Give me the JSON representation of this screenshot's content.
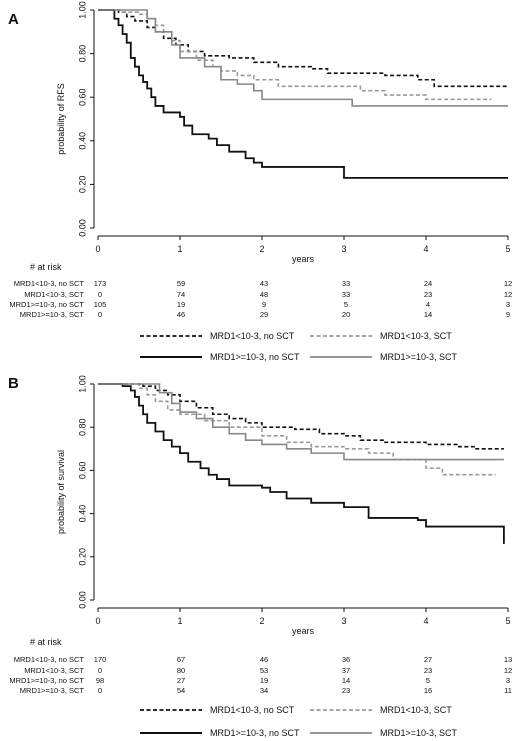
{
  "chart_data": [
    {
      "type": "line",
      "panel": "A",
      "ylabel": "probability of RFS",
      "xlabel": "years",
      "xlim": [
        0,
        5
      ],
      "ylim": [
        0,
        1
      ],
      "x_ticks": [
        "0",
        "1",
        "2",
        "3",
        "4",
        "5"
      ],
      "y_ticks": [
        "0.00",
        "0.20",
        "0.40",
        "0.60",
        "0.80",
        "1.00"
      ],
      "grid": false,
      "series": [
        {
          "name": "MRD1<10-3, no SCT",
          "color": "#111111",
          "dash": "dashed",
          "points": [
            [
              0,
              1
            ],
            [
              0.25,
              0.99
            ],
            [
              0.35,
              0.97
            ],
            [
              0.45,
              0.95
            ],
            [
              0.6,
              0.92
            ],
            [
              0.7,
              0.9
            ],
            [
              0.8,
              0.87
            ],
            [
              0.95,
              0.84
            ],
            [
              1.1,
              0.81
            ],
            [
              1.3,
              0.79
            ],
            [
              1.6,
              0.78
            ],
            [
              1.9,
              0.76
            ],
            [
              2.2,
              0.74
            ],
            [
              2.6,
              0.73
            ],
            [
              2.8,
              0.71
            ],
            [
              3.5,
              0.7
            ],
            [
              3.9,
              0.68
            ],
            [
              4.1,
              0.65
            ],
            [
              5,
              0.65
            ]
          ]
        },
        {
          "name": "MRD1<10-3, SCT",
          "color": "#999999",
          "dash": "dashed",
          "points": [
            [
              0,
              1
            ],
            [
              0.3,
              0.99
            ],
            [
              0.5,
              0.98
            ],
            [
              0.6,
              0.96
            ],
            [
              0.7,
              0.93
            ],
            [
              0.8,
              0.9
            ],
            [
              0.9,
              0.86
            ],
            [
              1,
              0.81
            ],
            [
              1.2,
              0.77
            ],
            [
              1.4,
              0.74
            ],
            [
              1.5,
              0.72
            ],
            [
              1.7,
              0.7
            ],
            [
              1.9,
              0.68
            ],
            [
              2.2,
              0.65
            ],
            [
              2.8,
              0.65
            ],
            [
              3.2,
              0.63
            ],
            [
              3.5,
              0.61
            ],
            [
              4,
              0.59
            ],
            [
              4.8,
              0.59
            ]
          ]
        },
        {
          "name": "MRD1>=10-3, no SCT",
          "color": "#111111",
          "dash": "solid",
          "points": [
            [
              0,
              1
            ],
            [
              0.2,
              0.96
            ],
            [
              0.25,
              0.93
            ],
            [
              0.3,
              0.89
            ],
            [
              0.35,
              0.85
            ],
            [
              0.4,
              0.78
            ],
            [
              0.45,
              0.74
            ],
            [
              0.5,
              0.7
            ],
            [
              0.55,
              0.67
            ],
            [
              0.6,
              0.64
            ],
            [
              0.65,
              0.6
            ],
            [
              0.7,
              0.56
            ],
            [
              0.8,
              0.53
            ],
            [
              1,
              0.51
            ],
            [
              1.05,
              0.47
            ],
            [
              1.15,
              0.43
            ],
            [
              1.35,
              0.41
            ],
            [
              1.45,
              0.38
            ],
            [
              1.6,
              0.35
            ],
            [
              1.8,
              0.32
            ],
            [
              1.9,
              0.3
            ],
            [
              2,
              0.28
            ],
            [
              3,
              0.23
            ],
            [
              5,
              0.23
            ]
          ]
        },
        {
          "name": "MRD1>=10-3, SCT",
          "color": "#888888",
          "dash": "solid",
          "points": [
            [
              0,
              1
            ],
            [
              0.55,
              1
            ],
            [
              0.6,
              0.96
            ],
            [
              0.7,
              0.9
            ],
            [
              0.9,
              0.84
            ],
            [
              1,
              0.78
            ],
            [
              1.3,
              0.74
            ],
            [
              1.5,
              0.68
            ],
            [
              1.7,
              0.66
            ],
            [
              1.9,
              0.63
            ],
            [
              2,
              0.59
            ],
            [
              2.8,
              0.59
            ],
            [
              3.1,
              0.56
            ],
            [
              5,
              0.56
            ]
          ]
        }
      ],
      "at_risk": {
        "title": "# at risk",
        "labels": [
          "MRD1<10-3, no SCT",
          "MRD1<10-3, SCT",
          "MRD1>=10-3, no SCT",
          "MRD1>=10-3, SCT"
        ],
        "counts": [
          [
            "173",
            "59",
            "43",
            "33",
            "24",
            "12"
          ],
          [
            "0",
            "74",
            "48",
            "33",
            "23",
            "12"
          ],
          [
            "105",
            "19",
            "9",
            "5",
            "4",
            "3"
          ],
          [
            "0",
            "46",
            "29",
            "20",
            "14",
            "9"
          ]
        ]
      }
    },
    {
      "type": "line",
      "panel": "B",
      "ylabel": "probability of survival",
      "xlabel": "years",
      "xlim": [
        0,
        5
      ],
      "ylim": [
        0,
        1
      ],
      "x_ticks": [
        "0",
        "1",
        "2",
        "3",
        "4",
        "5"
      ],
      "y_ticks": [
        "0.00",
        "0.20",
        "0.40",
        "0.60",
        "0.80",
        "1.00"
      ],
      "grid": false,
      "series": [
        {
          "name": "MRD1<10-3, no SCT",
          "color": "#111111",
          "dash": "dashed",
          "points": [
            [
              0,
              1
            ],
            [
              0.55,
              0.99
            ],
            [
              0.7,
              0.97
            ],
            [
              0.85,
              0.95
            ],
            [
              1,
              0.92
            ],
            [
              1.2,
              0.89
            ],
            [
              1.4,
              0.86
            ],
            [
              1.6,
              0.84
            ],
            [
              1.8,
              0.82
            ],
            [
              2,
              0.8
            ],
            [
              2.4,
              0.79
            ],
            [
              2.7,
              0.77
            ],
            [
              3,
              0.76
            ],
            [
              3.2,
              0.74
            ],
            [
              3.5,
              0.73
            ],
            [
              4,
              0.72
            ],
            [
              4.4,
              0.71
            ],
            [
              4.6,
              0.7
            ],
            [
              4.95,
              0.7
            ]
          ]
        },
        {
          "name": "MRD1<10-3, SCT",
          "color": "#999999",
          "dash": "dashed",
          "points": [
            [
              0,
              1
            ],
            [
              0.5,
              0.98
            ],
            [
              0.6,
              0.95
            ],
            [
              0.7,
              0.92
            ],
            [
              0.85,
              0.88
            ],
            [
              1,
              0.86
            ],
            [
              1.3,
              0.83
            ],
            [
              1.6,
              0.8
            ],
            [
              2,
              0.76
            ],
            [
              2.3,
              0.73
            ],
            [
              2.6,
              0.71
            ],
            [
              3,
              0.7
            ],
            [
              3.3,
              0.68
            ],
            [
              3.6,
              0.65
            ],
            [
              4,
              0.61
            ],
            [
              4.2,
              0.58
            ],
            [
              4.85,
              0.58
            ]
          ]
        },
        {
          "name": "MRD1>=10-3, no SCT",
          "color": "#111111",
          "dash": "solid",
          "points": [
            [
              0,
              1
            ],
            [
              0.3,
              0.99
            ],
            [
              0.4,
              0.97
            ],
            [
              0.45,
              0.94
            ],
            [
              0.5,
              0.9
            ],
            [
              0.55,
              0.86
            ],
            [
              0.6,
              0.82
            ],
            [
              0.7,
              0.78
            ],
            [
              0.8,
              0.74
            ],
            [
              0.9,
              0.71
            ],
            [
              1,
              0.68
            ],
            [
              1.1,
              0.64
            ],
            [
              1.25,
              0.61
            ],
            [
              1.35,
              0.58
            ],
            [
              1.45,
              0.56
            ],
            [
              1.6,
              0.53
            ],
            [
              2,
              0.52
            ],
            [
              2.1,
              0.5
            ],
            [
              2.3,
              0.47
            ],
            [
              2.6,
              0.45
            ],
            [
              3,
              0.43
            ],
            [
              3.3,
              0.38
            ],
            [
              3.9,
              0.37
            ],
            [
              4,
              0.34
            ],
            [
              4.95,
              0.34
            ],
            [
              4.95,
              0.26
            ]
          ]
        },
        {
          "name": "MRD1>=10-3, SCT",
          "color": "#888888",
          "dash": "solid",
          "points": [
            [
              0,
              1
            ],
            [
              0.6,
              1
            ],
            [
              0.75,
              0.96
            ],
            [
              0.9,
              0.91
            ],
            [
              1,
              0.87
            ],
            [
              1.2,
              0.84
            ],
            [
              1.4,
              0.8
            ],
            [
              1.6,
              0.77
            ],
            [
              1.8,
              0.74
            ],
            [
              2,
              0.72
            ],
            [
              2.3,
              0.7
            ],
            [
              2.6,
              0.68
            ],
            [
              3,
              0.65
            ],
            [
              4.3,
              0.65
            ],
            [
              4.95,
              0.65
            ]
          ]
        }
      ],
      "at_risk": {
        "title": "# at risk",
        "labels": [
          "MRD1<10-3, no SCT",
          "MRD1<10-3, SCT",
          "MRD1>=10-3, no SCT",
          "MRD1>=10-3, SCT"
        ],
        "counts": [
          [
            "170",
            "67",
            "46",
            "36",
            "27",
            "13"
          ],
          [
            "0",
            "80",
            "53",
            "37",
            "23",
            "12"
          ],
          [
            "98",
            "27",
            "19",
            "14",
            "5",
            "3"
          ],
          [
            "0",
            "54",
            "34",
            "23",
            "16",
            "11"
          ]
        ]
      }
    }
  ]
}
